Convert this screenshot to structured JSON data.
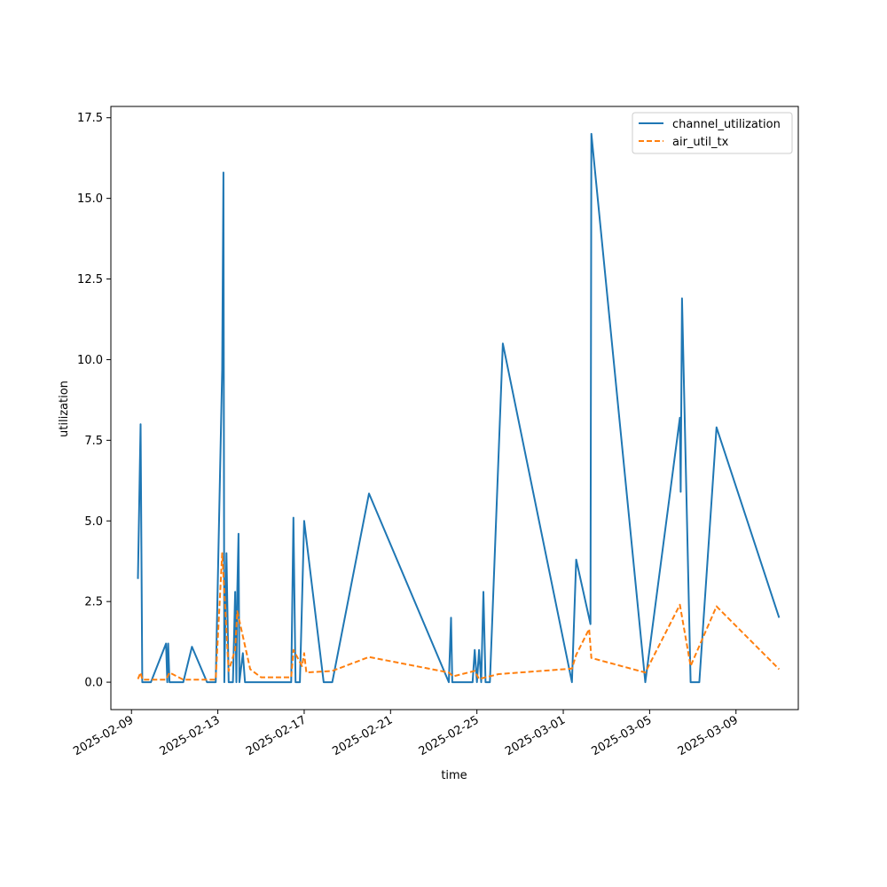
{
  "chart_data": {
    "type": "line",
    "title": "",
    "xlabel": "time",
    "ylabel": "utilization",
    "x_ticks": [
      "2025-02-09",
      "2025-02-13",
      "2025-02-17",
      "2025-02-21",
      "2025-02-25",
      "2025-03-01",
      "2025-03-05",
      "2025-03-09"
    ],
    "y_ticks": [
      "0.0",
      "2.5",
      "5.0",
      "7.5",
      "10.0",
      "12.5",
      "15.0",
      "17.5"
    ],
    "xlim": [
      "2025-02-08T01:06",
      "2025-03-11T21:16"
    ],
    "ylim": [
      -0.85,
      17.85
    ],
    "grid": false,
    "legend_position": "top-right",
    "series": [
      {
        "name": "channel_utilization",
        "color": "#1f77b4",
        "style": "solid",
        "points": [
          [
            "2025-02-09T07:12",
            3.2
          ],
          [
            "2025-02-09T10:05",
            8.0
          ],
          [
            "2025-02-09T12:00",
            0.0
          ],
          [
            "2025-02-09T21:36",
            0.0
          ],
          [
            "2025-02-10T14:24",
            1.2
          ],
          [
            "2025-02-10T15:50",
            0.0
          ],
          [
            "2025-02-10T16:48",
            1.2
          ],
          [
            "2025-02-10T18:14",
            0.0
          ],
          [
            "2025-02-11T09:36",
            0.0
          ],
          [
            "2025-02-11T19:12",
            1.1
          ],
          [
            "2025-02-12T12:00",
            0.0
          ],
          [
            "2025-02-12T21:36",
            0.0
          ],
          [
            "2025-02-13T04:48",
            9.7
          ],
          [
            "2025-02-13T06:14",
            15.8
          ],
          [
            "2025-02-13T07:12",
            0.0
          ],
          [
            "2025-02-13T09:36",
            4.0
          ],
          [
            "2025-02-13T12:00",
            0.0
          ],
          [
            "2025-02-13T16:48",
            0.0
          ],
          [
            "2025-02-13T19:12",
            2.8
          ],
          [
            "2025-02-13T20:38",
            0.0
          ],
          [
            "2025-02-13T21:36",
            2.8
          ],
          [
            "2025-02-13T23:02",
            4.6
          ],
          [
            "2025-02-14T00:00",
            0.0
          ],
          [
            "2025-02-14T03:50",
            0.9
          ],
          [
            "2025-02-14T06:14",
            0.0
          ],
          [
            "2025-02-16T09:36",
            0.0
          ],
          [
            "2025-02-16T12:00",
            5.1
          ],
          [
            "2025-02-16T14:24",
            0.0
          ],
          [
            "2025-02-16T19:12",
            0.0
          ],
          [
            "2025-02-17T00:00",
            5.0
          ],
          [
            "2025-02-17T21:36",
            0.0
          ],
          [
            "2025-02-18T07:12",
            0.0
          ],
          [
            "2025-02-20T00:00",
            5.85
          ],
          [
            "2025-02-23T16:48",
            0.0
          ],
          [
            "2025-02-23T19:12",
            2.0
          ],
          [
            "2025-02-23T20:38",
            0.0
          ],
          [
            "2025-02-24T19:12",
            0.0
          ],
          [
            "2025-02-24T21:36",
            1.0
          ],
          [
            "2025-02-25T00:00",
            0.0
          ],
          [
            "2025-02-25T02:24",
            1.0
          ],
          [
            "2025-02-25T04:48",
            0.0
          ],
          [
            "2025-02-25T07:12",
            2.8
          ],
          [
            "2025-02-25T09:36",
            0.0
          ],
          [
            "2025-02-25T14:24",
            0.0
          ],
          [
            "2025-02-26T04:48",
            10.5
          ],
          [
            "2025-03-01T09:36",
            0.0
          ],
          [
            "2025-03-01T14:24",
            3.8
          ],
          [
            "2025-03-02T06:14",
            1.8
          ],
          [
            "2025-03-02T07:12",
            17.0
          ],
          [
            "2025-03-04T19:12",
            0.0
          ],
          [
            "2025-03-06T09:36",
            8.2
          ],
          [
            "2025-03-06T10:34",
            5.9
          ],
          [
            "2025-03-06T12:00",
            11.9
          ],
          [
            "2025-03-06T21:36",
            0.0
          ],
          [
            "2025-03-07T07:12",
            0.0
          ],
          [
            "2025-03-08T02:24",
            7.9
          ],
          [
            "2025-03-11T00:00",
            2.0
          ]
        ]
      },
      {
        "name": "air_util_tx",
        "color": "#ff7f0e",
        "style": "dashed",
        "points": [
          [
            "2025-02-09T07:12",
            0.1
          ],
          [
            "2025-02-09T10:05",
            0.3
          ],
          [
            "2025-02-09T12:00",
            0.08
          ],
          [
            "2025-02-10T14:24",
            0.08
          ],
          [
            "2025-02-10T18:14",
            0.3
          ],
          [
            "2025-02-11T09:36",
            0.08
          ],
          [
            "2025-02-12T21:36",
            0.08
          ],
          [
            "2025-02-13T04:48",
            4.0
          ],
          [
            "2025-02-13T12:00",
            0.35
          ],
          [
            "2025-02-13T19:12",
            1.0
          ],
          [
            "2025-02-13T21:36",
            2.2
          ],
          [
            "2025-02-14T04:48",
            1.3
          ],
          [
            "2025-02-14T12:00",
            0.4
          ],
          [
            "2025-02-15T00:00",
            0.15
          ],
          [
            "2025-02-16T09:36",
            0.15
          ],
          [
            "2025-02-16T12:00",
            1.0
          ],
          [
            "2025-02-16T21:36",
            0.5
          ],
          [
            "2025-02-17T00:00",
            0.9
          ],
          [
            "2025-02-17T02:24",
            0.3
          ],
          [
            "2025-02-18T07:12",
            0.35
          ],
          [
            "2025-02-20T00:00",
            0.78
          ],
          [
            "2025-02-23T16:48",
            0.3
          ],
          [
            "2025-02-23T21:36",
            0.18
          ],
          [
            "2025-02-24T21:36",
            0.35
          ],
          [
            "2025-02-25T02:24",
            0.1
          ],
          [
            "2025-02-26T00:00",
            0.25
          ],
          [
            "2025-03-01T09:36",
            0.42
          ],
          [
            "2025-03-01T14:24",
            0.85
          ],
          [
            "2025-03-02T04:48",
            1.65
          ],
          [
            "2025-03-02T07:12",
            0.75
          ],
          [
            "2025-03-04T19:12",
            0.3
          ],
          [
            "2025-03-06T09:36",
            2.4
          ],
          [
            "2025-03-06T21:36",
            0.5
          ],
          [
            "2025-03-08T02:24",
            2.35
          ],
          [
            "2025-03-11T00:00",
            0.4
          ]
        ]
      }
    ]
  }
}
